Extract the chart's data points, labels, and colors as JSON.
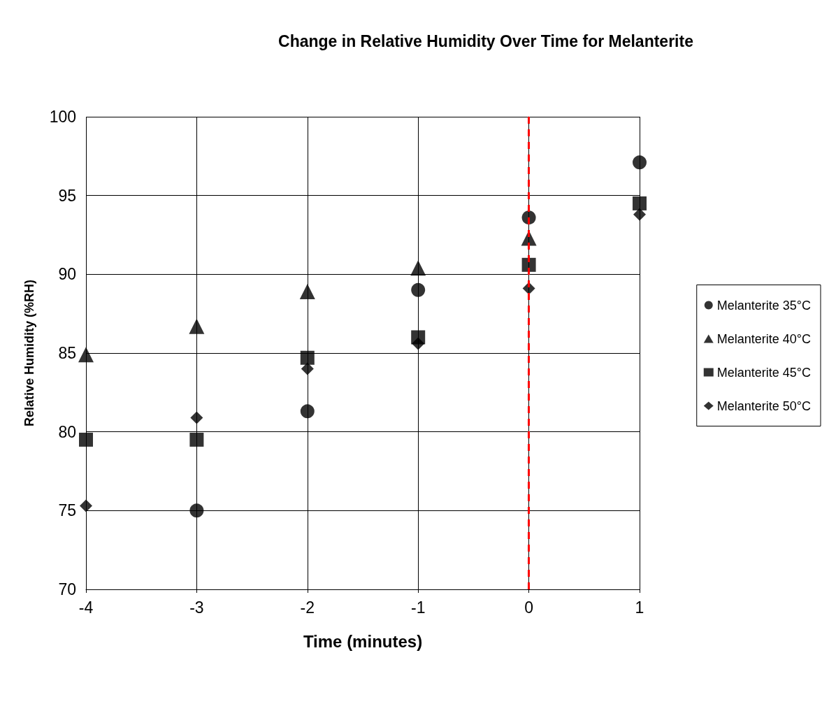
{
  "chart_data": {
    "type": "scatter",
    "title": "Change in Relative Humidity Over Time for Melanterite",
    "xlabel": "Time (minutes)",
    "ylabel": "Relative Humidity (%RH)",
    "x": [
      -4,
      -3,
      -2,
      -1,
      0,
      1
    ],
    "series": [
      {
        "name": "Melanterite 35°C",
        "color": "#000000",
        "marker": "circle",
        "values": [
          null,
          75.0,
          81.3,
          89.0,
          93.6,
          97.1
        ]
      },
      {
        "name": "Melanterite 40°C",
        "color": "#000000",
        "marker": "triangle",
        "values": [
          84.9,
          86.7,
          88.9,
          90.4,
          92.3,
          null
        ]
      },
      {
        "name": "Melanterite 45°C",
        "color": "#000000",
        "marker": "square",
        "values": [
          79.5,
          79.5,
          84.7,
          86.0,
          90.6,
          94.5
        ]
      },
      {
        "name": "Melanterite 50°C",
        "color": "#000000",
        "marker": "diamond",
        "values": [
          75.3,
          80.9,
          84.0,
          85.6,
          89.1,
          93.8
        ]
      }
    ],
    "xlim": [
      -4,
      1
    ],
    "xticks": [
      -4,
      -3,
      -2,
      -1,
      0,
      1
    ],
    "ylim": [
      70,
      100
    ],
    "yticks": [
      70,
      75,
      80,
      85,
      90,
      95,
      100
    ],
    "ref_lines": [
      {
        "axis": "x",
        "value": 0,
        "color": "#ff0000",
        "line_style": "dashed"
      }
    ],
    "grid": true,
    "legend": "right"
  }
}
